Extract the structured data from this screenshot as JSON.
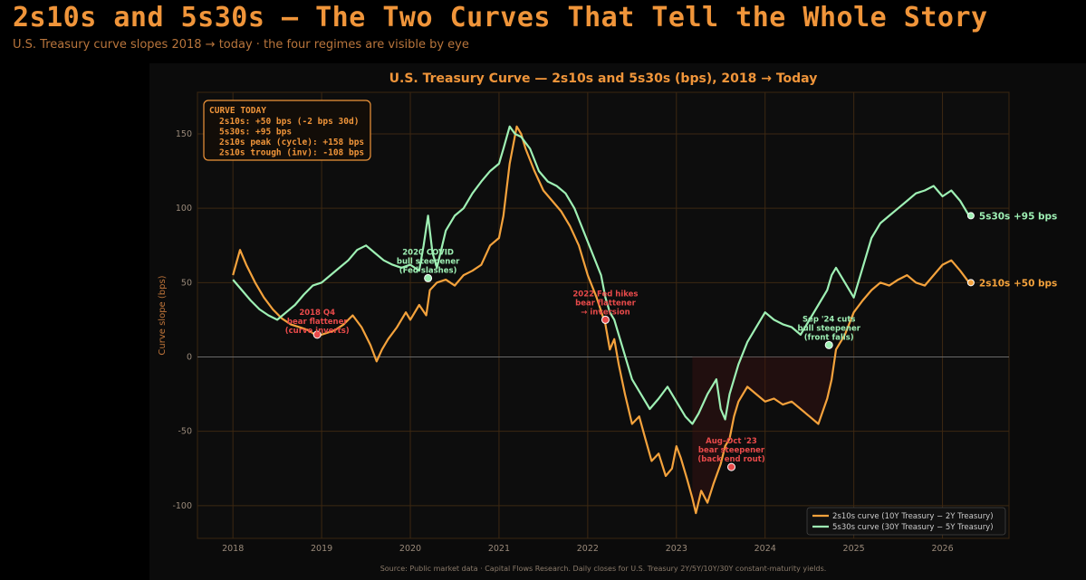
{
  "header": {
    "title": "2s10s and 5s30s — The Two Curves That Tell the Whole Story",
    "subtitle": "U.S. Treasury curve slopes 2018 → today · the four regimes are visible by eye"
  },
  "colors": {
    "accent": "#f0953a",
    "s2s10": "#f4a23c",
    "s5s30": "#9ef0b4",
    "red": "#e84a4a",
    "grid": "#3d2812",
    "background": "#0b0b0b"
  },
  "chart_data": {
    "type": "line",
    "title": "U.S. Treasury Curve — 2s10s and 5s30s (bps), 2018 → Today",
    "ylabel": "Curve slope (bps)",
    "xlabel": "",
    "xlim": [
      2017.6,
      2026.75
    ],
    "ylim": [
      -122,
      178
    ],
    "xticks": [
      "2018",
      "2019",
      "2020",
      "2021",
      "2022",
      "2023",
      "2024",
      "2025",
      "2026"
    ],
    "yticks": [
      -100,
      -50,
      0,
      50,
      100,
      150
    ],
    "grid": true,
    "legend_position": "bottom-right",
    "series": [
      {
        "name": "2s10s curve  (10Y Treasury − 2Y Treasury)",
        "color": "#f4a23c",
        "x": [
          2018.0,
          2018.08,
          2018.15,
          2018.25,
          2018.35,
          2018.45,
          2018.55,
          2018.65,
          2018.75,
          2018.85,
          2018.95,
          2019.05,
          2019.15,
          2019.25,
          2019.35,
          2019.45,
          2019.55,
          2019.62,
          2019.68,
          2019.75,
          2019.85,
          2019.95,
          2020.0,
          2020.1,
          2020.18,
          2020.22,
          2020.3,
          2020.4,
          2020.5,
          2020.6,
          2020.7,
          2020.8,
          2020.9,
          2021.0,
          2021.05,
          2021.12,
          2021.2,
          2021.25,
          2021.3,
          2021.4,
          2021.5,
          2021.6,
          2021.7,
          2021.8,
          2021.9,
          2022.0,
          2022.1,
          2022.2,
          2022.25,
          2022.3,
          2022.35,
          2022.42,
          2022.5,
          2022.58,
          2022.65,
          2022.72,
          2022.8,
          2022.88,
          2022.95,
          2023.0,
          2023.05,
          2023.12,
          2023.18,
          2023.22,
          2023.28,
          2023.35,
          2023.42,
          2023.5,
          2023.55,
          2023.6,
          2023.65,
          2023.7,
          2023.8,
          2023.9,
          2024.0,
          2024.1,
          2024.2,
          2024.3,
          2024.4,
          2024.5,
          2024.6,
          2024.7,
          2024.75,
          2024.8,
          2024.9,
          2025.0,
          2025.1,
          2025.2,
          2025.3,
          2025.4,
          2025.5,
          2025.6,
          2025.7,
          2025.8,
          2025.9,
          2026.0,
          2026.1,
          2026.2,
          2026.3
        ],
        "y": [
          55,
          72,
          62,
          50,
          40,
          32,
          26,
          22,
          20,
          18,
          14,
          16,
          18,
          22,
          28,
          20,
          8,
          -3,
          5,
          12,
          20,
          30,
          25,
          35,
          28,
          45,
          50,
          52,
          48,
          55,
          58,
          62,
          75,
          80,
          95,
          130,
          155,
          150,
          140,
          125,
          112,
          105,
          98,
          88,
          75,
          55,
          40,
          22,
          5,
          12,
          -5,
          -25,
          -45,
          -40,
          -55,
          -70,
          -65,
          -80,
          -75,
          -60,
          -68,
          -82,
          -95,
          -105,
          -90,
          -98,
          -85,
          -72,
          -60,
          -55,
          -40,
          -30,
          -20,
          -25,
          -30,
          -28,
          -32,
          -30,
          -35,
          -40,
          -45,
          -28,
          -15,
          5,
          15,
          30,
          38,
          45,
          50,
          48,
          52,
          55,
          50,
          48,
          55,
          62,
          65,
          58,
          50
        ]
      },
      {
        "name": "5s30s curve  (30Y Treasury − 5Y Treasury)",
        "color": "#9ef0b4",
        "x": [
          2018.0,
          2018.1,
          2018.2,
          2018.3,
          2018.4,
          2018.5,
          2018.6,
          2018.7,
          2018.8,
          2018.9,
          2019.0,
          2019.1,
          2019.2,
          2019.3,
          2019.4,
          2019.5,
          2019.6,
          2019.7,
          2019.8,
          2019.9,
          2020.0,
          2020.1,
          2020.15,
          2020.2,
          2020.25,
          2020.3,
          2020.4,
          2020.5,
          2020.6,
          2020.7,
          2020.8,
          2020.9,
          2021.0,
          2021.05,
          2021.12,
          2021.18,
          2021.25,
          2021.35,
          2021.45,
          2021.55,
          2021.65,
          2021.75,
          2021.85,
          2021.95,
          2022.05,
          2022.15,
          2022.2,
          2022.25,
          2022.3,
          2022.4,
          2022.5,
          2022.6,
          2022.7,
          2022.8,
          2022.9,
          2023.0,
          2023.1,
          2023.18,
          2023.25,
          2023.35,
          2023.45,
          2023.5,
          2023.55,
          2023.6,
          2023.7,
          2023.8,
          2023.9,
          2024.0,
          2024.1,
          2024.2,
          2024.3,
          2024.4,
          2024.5,
          2024.6,
          2024.7,
          2024.75,
          2024.8,
          2024.9,
          2025.0,
          2025.1,
          2025.2,
          2025.3,
          2025.4,
          2025.5,
          2025.6,
          2025.7,
          2025.8,
          2025.9,
          2026.0,
          2026.1,
          2026.2,
          2026.3
        ],
        "y": [
          52,
          45,
          38,
          32,
          28,
          25,
          30,
          35,
          42,
          48,
          50,
          55,
          60,
          65,
          72,
          75,
          70,
          65,
          62,
          60,
          62,
          58,
          75,
          95,
          70,
          60,
          85,
          95,
          100,
          110,
          118,
          125,
          130,
          140,
          155,
          150,
          148,
          140,
          125,
          118,
          115,
          110,
          100,
          85,
          70,
          55,
          40,
          30,
          25,
          5,
          -15,
          -25,
          -35,
          -28,
          -20,
          -30,
          -40,
          -45,
          -38,
          -25,
          -15,
          -35,
          -42,
          -25,
          -5,
          10,
          20,
          30,
          25,
          22,
          20,
          15,
          25,
          35,
          45,
          55,
          60,
          50,
          40,
          60,
          80,
          90,
          95,
          100,
          105,
          110,
          112,
          115,
          108,
          112,
          105,
          95
        ]
      }
    ],
    "today_box": {
      "heading": "CURVE TODAY",
      "lines": [
        "2s10s: +50 bps  (-2 bps 30d)",
        "5s30s: +95 bps",
        "2s10s peak (cycle): +158 bps",
        "2s10s trough (inv): -108 bps"
      ]
    },
    "end_labels": {
      "s5s30": {
        "x": 2026.32,
        "y": 95,
        "text": "5s30s +95 bps"
      },
      "s2s10": {
        "x": 2026.32,
        "y": 50,
        "text": "2s10s +50 bps"
      }
    },
    "annotations": [
      {
        "x": 2018.95,
        "y": 15,
        "lines": [
          "2018 Q4",
          "bear flattener",
          "(curve inverts)"
        ],
        "color": "#e84a4a"
      },
      {
        "x": 2020.2,
        "y": 53,
        "lines": [
          "2020 COVID",
          "bull steepener",
          "(Fed slashes)"
        ],
        "color": "#9ef0b4"
      },
      {
        "x": 2022.2,
        "y": 25,
        "lines": [
          "2022 Fed hikes",
          "bear flattener",
          "→ inversion"
        ],
        "color": "#e84a4a"
      },
      {
        "x": 2023.62,
        "y": -74,
        "lines": [
          "Aug–Oct '23",
          "bear steepener",
          "(back end rout)"
        ],
        "color": "#e84a4a"
      },
      {
        "x": 2024.72,
        "y": 8,
        "lines": [
          "Sep '24 cuts",
          "bull steepener",
          "(front falls)"
        ],
        "color": "#9ef0b4"
      }
    ],
    "source_note": "Source: Public market data · Capital Flows Research.  Daily closes for U.S. Treasury 2Y/5Y/10Y/30Y constant-maturity yields."
  }
}
